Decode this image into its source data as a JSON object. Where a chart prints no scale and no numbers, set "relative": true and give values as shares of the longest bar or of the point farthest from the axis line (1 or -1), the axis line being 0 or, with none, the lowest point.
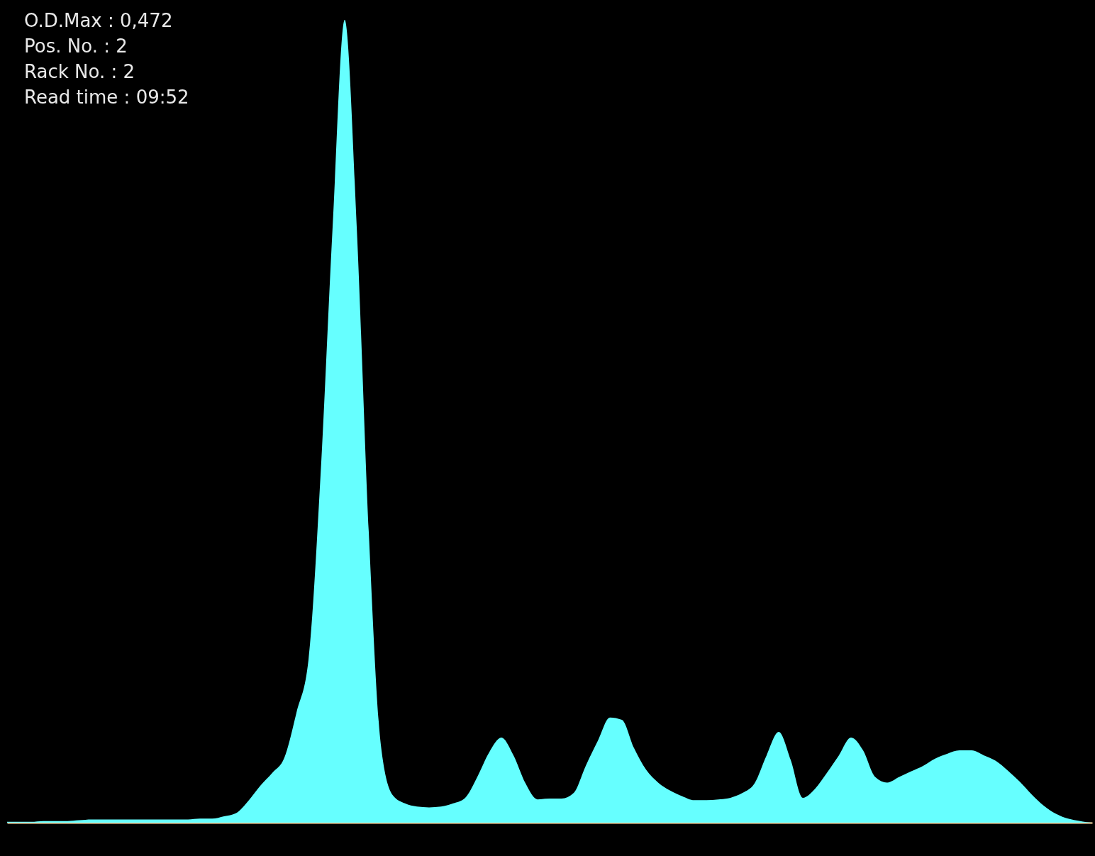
{
  "chart_data": {
    "type": "area",
    "relative": true,
    "annotations": [
      "O.D.Max : 0,472",
      "Pos. No.   : 2",
      "Rack No.   : 2",
      "Read time : 09:52"
    ],
    "categories": [
      null,
      null,
      null,
      null,
      null,
      null,
      null,
      null,
      null,
      null,
      null,
      null,
      null,
      null,
      null,
      null,
      null,
      null,
      null,
      null,
      null,
      null,
      null,
      null,
      null,
      null,
      null,
      null,
      null,
      null,
      null,
      null,
      null,
      null,
      null,
      null,
      null,
      null,
      null,
      null,
      null,
      null,
      null,
      null,
      null,
      null,
      null,
      null,
      null,
      null,
      null,
      null,
      null,
      null,
      null,
      null,
      null,
      null,
      null,
      null,
      null,
      null,
      null,
      null,
      null,
      null,
      null,
      null,
      null,
      null,
      null,
      null,
      null,
      null,
      null,
      null,
      null,
      null,
      null,
      null,
      null,
      null,
      null,
      null,
      null,
      null,
      null,
      null,
      null,
      null,
      null
    ],
    "series": [
      {
        "color": "#66ffff",
        "values": [
          0.001,
          0.001,
          0.001,
          0.002,
          0.002,
          0.002,
          0.003,
          0.004,
          0.004,
          0.004,
          0.004,
          0.004,
          0.004,
          0.004,
          0.004,
          0.004,
          0.005,
          0.005,
          0.008,
          0.012,
          0.027,
          0.046,
          0.062,
          0.081,
          0.137,
          0.203,
          0.433,
          0.742,
          1.0,
          0.742,
          0.362,
          0.097,
          0.034,
          0.024,
          0.02,
          0.019,
          0.02,
          0.024,
          0.031,
          0.057,
          0.088,
          0.106,
          0.084,
          0.049,
          0.029,
          0.03,
          0.03,
          0.037,
          0.071,
          0.102,
          0.131,
          0.128,
          0.093,
          0.066,
          0.05,
          0.04,
          0.033,
          0.028,
          0.028,
          0.029,
          0.031,
          0.037,
          0.049,
          0.084,
          0.113,
          0.078,
          0.031,
          0.042,
          0.062,
          0.084,
          0.106,
          0.09,
          0.057,
          0.05,
          0.057,
          0.064,
          0.071,
          0.08,
          0.086,
          0.09,
          0.09,
          0.084,
          0.077,
          0.065,
          0.051,
          0.035,
          0.021,
          0.011,
          0.005,
          0.002,
          0
        ]
      }
    ]
  }
}
